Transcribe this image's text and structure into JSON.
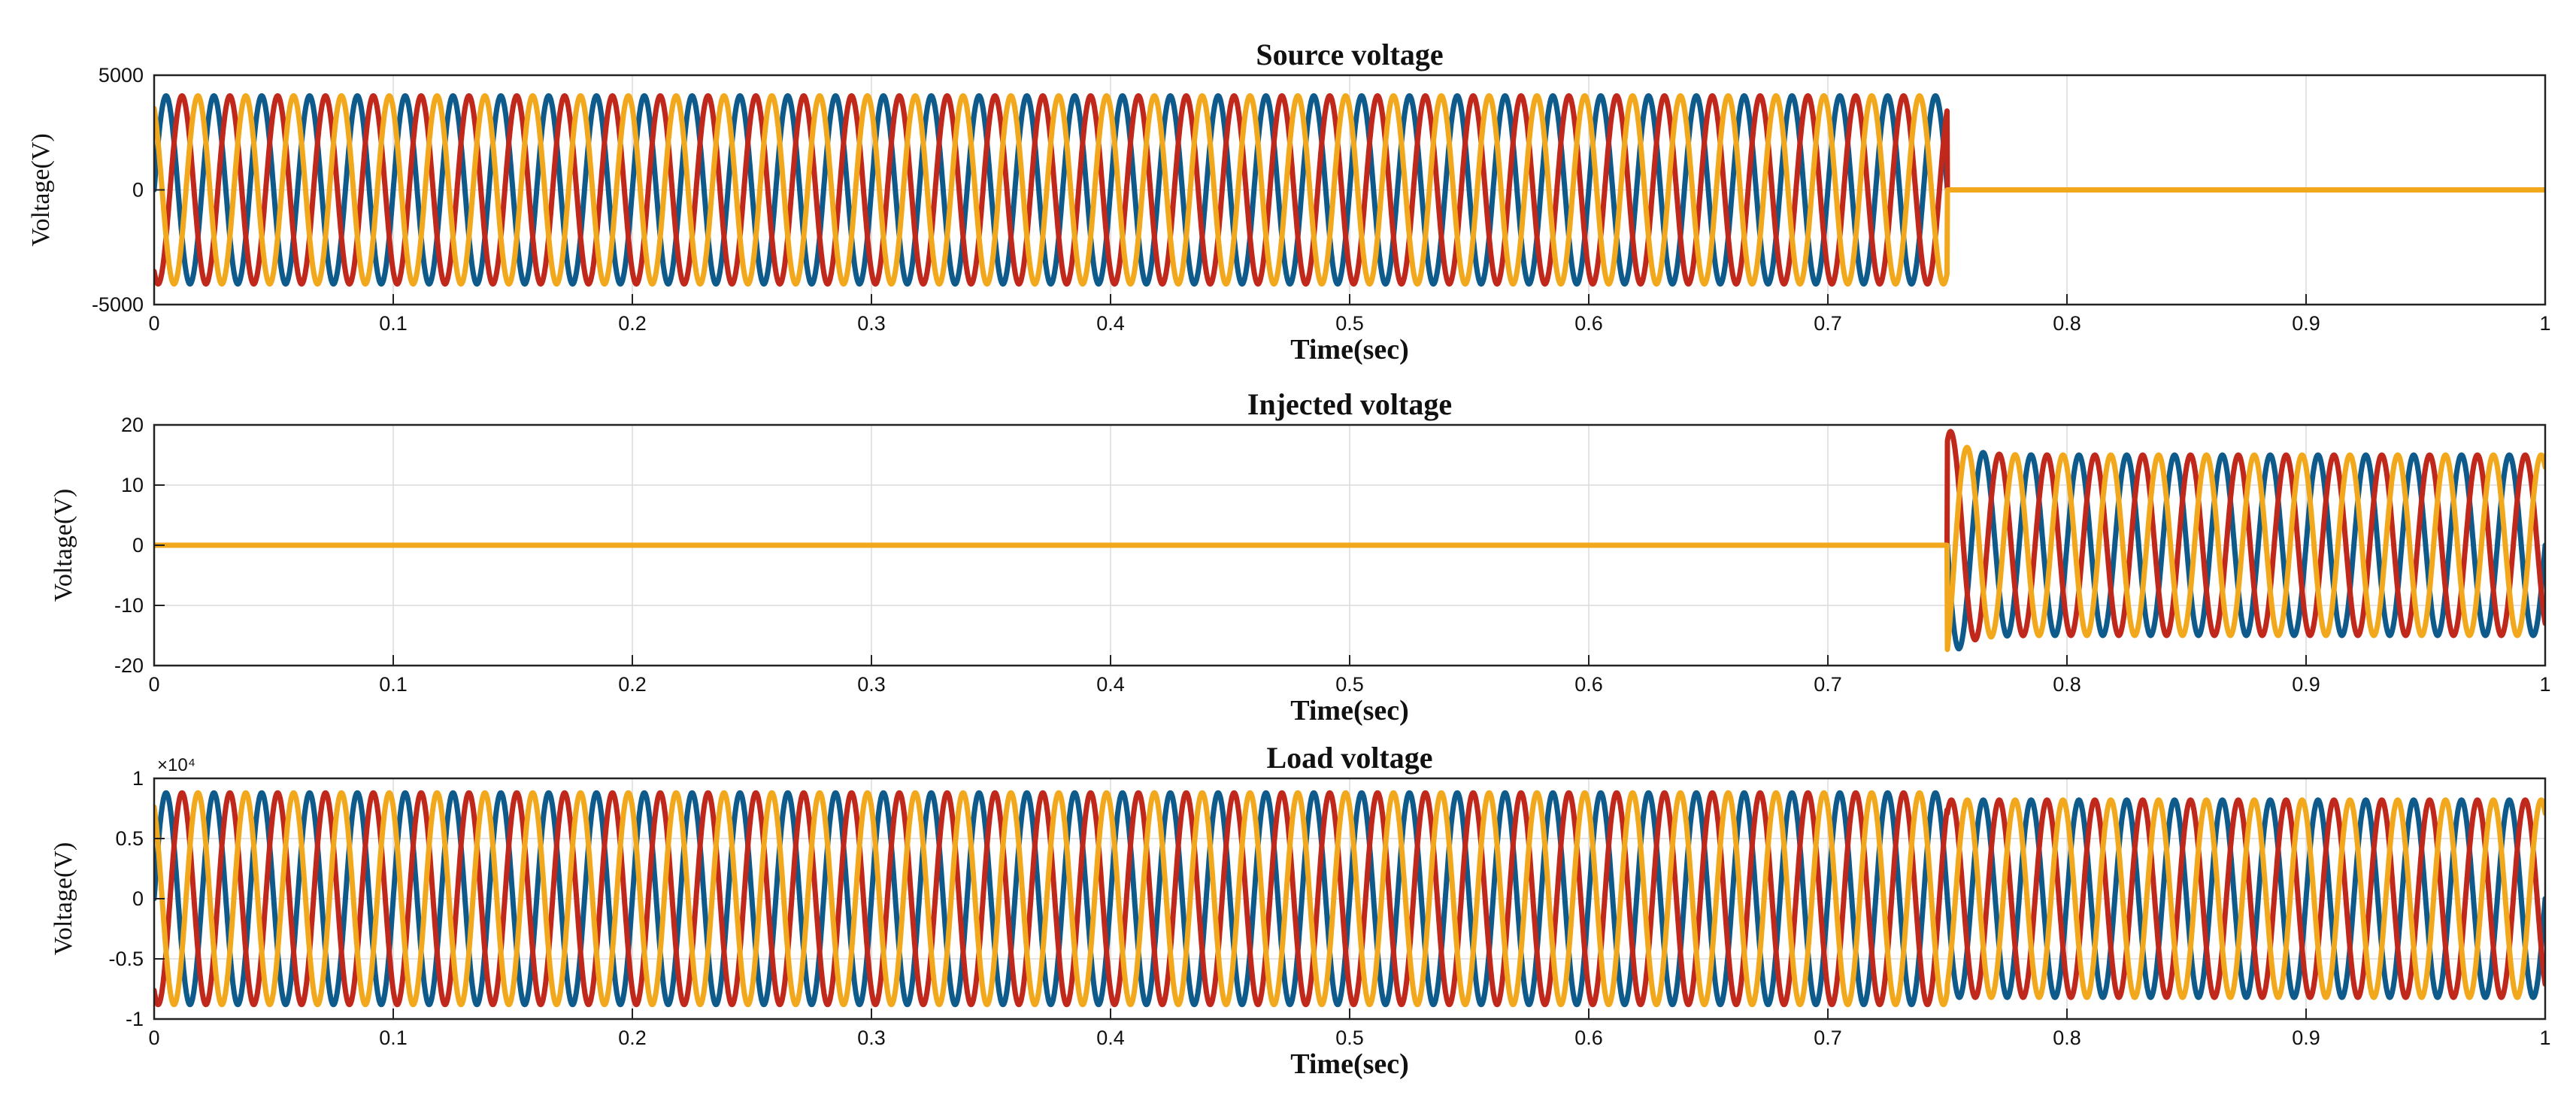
{
  "colors": {
    "phase_a": "#0e5a8a",
    "phase_b": "#c0281c",
    "phase_c": "#f2a81d"
  },
  "chart_data": [
    {
      "type": "line",
      "title": "Source voltage",
      "xlabel": "Time(sec)",
      "ylabel": "Voltage(V)",
      "xlim": [
        0,
        1
      ],
      "ylim": [
        -5000,
        5000
      ],
      "xticks": [
        0,
        0.1,
        0.2,
        0.3,
        0.4,
        0.5,
        0.6,
        0.7,
        0.8,
        0.9,
        1
      ],
      "xtick_labels": [
        "0",
        "0.1",
        "0.2",
        "0.3",
        "0.4",
        "0.5",
        "0.6",
        "0.7",
        "0.8",
        "0.9",
        "1"
      ],
      "yticks": [
        -5000,
        0,
        5000
      ],
      "ytick_labels": [
        "-5000",
        "0",
        "5000"
      ],
      "grid": true,
      "frequency_hz": 50,
      "series": [
        {
          "phase_deg": 0,
          "color": "#0e5a8a",
          "segments": [
            {
              "t_start": 0,
              "t_end": 0.75,
              "amplitude": 4100
            },
            {
              "t_start": 0.75,
              "t_end": 1,
              "amplitude": 0
            }
          ]
        },
        {
          "phase_deg": -120,
          "color": "#c0281c",
          "segments": [
            {
              "t_start": 0,
              "t_end": 0.75,
              "amplitude": 4100
            },
            {
              "t_start": 0.75,
              "t_end": 1,
              "amplitude": 0
            }
          ]
        },
        {
          "phase_deg": 120,
          "color": "#f2a81d",
          "segments": [
            {
              "t_start": 0,
              "t_end": 0.75,
              "amplitude": 4100
            },
            {
              "t_start": 0.75,
              "t_end": 1,
              "amplitude": 0
            }
          ]
        }
      ]
    },
    {
      "type": "line",
      "title": "Injected voltage",
      "xlabel": "Time(sec)",
      "ylabel": "Voltage(V)",
      "xlim": [
        0,
        1
      ],
      "ylim": [
        -20,
        20
      ],
      "xticks": [
        0,
        0.1,
        0.2,
        0.3,
        0.4,
        0.5,
        0.6,
        0.7,
        0.8,
        0.9,
        1
      ],
      "xtick_labels": [
        "0",
        "0.1",
        "0.2",
        "0.3",
        "0.4",
        "0.5",
        "0.6",
        "0.7",
        "0.8",
        "0.9",
        "1"
      ],
      "yticks": [
        -20,
        -10,
        0,
        10,
        20
      ],
      "ytick_labels": [
        "-20",
        "-10",
        "0",
        "10",
        "20"
      ],
      "grid": true,
      "frequency_hz": 50,
      "series": [
        {
          "phase_deg": 0,
          "color": "#0e5a8a",
          "segments": [
            {
              "t_start": 0,
              "t_end": 0.75,
              "amplitude": 0
            },
            {
              "t_start": 0.75,
              "t_end": 1,
              "amplitude": 15,
              "transient_peak": 20
            }
          ]
        },
        {
          "phase_deg": -120,
          "color": "#c0281c",
          "segments": [
            {
              "t_start": 0,
              "t_end": 0.75,
              "amplitude": 0
            },
            {
              "t_start": 0.75,
              "t_end": 1,
              "amplitude": 15,
              "transient_peak": 20
            }
          ]
        },
        {
          "phase_deg": 120,
          "color": "#f2a81d",
          "segments": [
            {
              "t_start": 0,
              "t_end": 0.75,
              "amplitude": 0
            },
            {
              "t_start": 0.75,
              "t_end": 1,
              "amplitude": 15,
              "transient_peak": 20
            }
          ]
        }
      ]
    },
    {
      "type": "line",
      "title": "Load voltage",
      "xlabel": "Time(sec)",
      "ylabel": "Voltage(V)",
      "xlim": [
        0,
        1
      ],
      "ylim": [
        -1,
        1
      ],
      "y_multiplier": "×10⁴",
      "xticks": [
        0,
        0.1,
        0.2,
        0.3,
        0.4,
        0.5,
        0.6,
        0.7,
        0.8,
        0.9,
        1
      ],
      "xtick_labels": [
        "0",
        "0.1",
        "0.2",
        "0.3",
        "0.4",
        "0.5",
        "0.6",
        "0.7",
        "0.8",
        "0.9",
        "1"
      ],
      "yticks": [
        -1,
        -0.5,
        0,
        0.5,
        1
      ],
      "ytick_labels": [
        "-1",
        "-0.5",
        "0",
        "0.5",
        "1"
      ],
      "grid": true,
      "frequency_hz": 50,
      "series": [
        {
          "phase_deg": 0,
          "color": "#0e5a8a",
          "segments": [
            {
              "t_start": 0,
              "t_end": 0.75,
              "amplitude": 0.88
            },
            {
              "t_start": 0.75,
              "t_end": 1,
              "amplitude": 0.82
            }
          ]
        },
        {
          "phase_deg": -120,
          "color": "#c0281c",
          "segments": [
            {
              "t_start": 0,
              "t_end": 0.75,
              "amplitude": 0.88
            },
            {
              "t_start": 0.75,
              "t_end": 1,
              "amplitude": 0.82
            }
          ]
        },
        {
          "phase_deg": 120,
          "color": "#f2a81d",
          "segments": [
            {
              "t_start": 0,
              "t_end": 0.75,
              "amplitude": 0.88
            },
            {
              "t_start": 0.75,
              "t_end": 1,
              "amplitude": 0.82
            }
          ]
        }
      ]
    }
  ]
}
